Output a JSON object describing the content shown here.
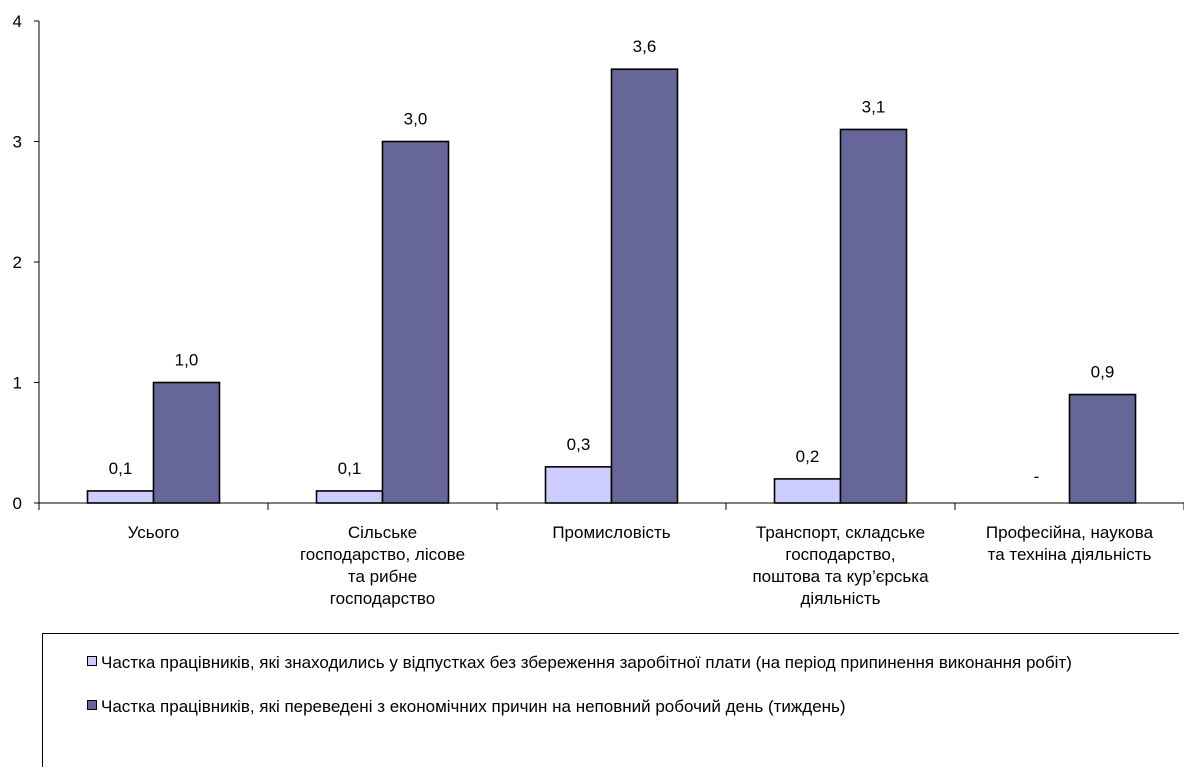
{
  "chart_data": {
    "type": "bar",
    "categories": [
      [
        "Усього"
      ],
      [
        "Сільське",
        "господарство, лісове",
        "та рибне",
        "господарство"
      ],
      [
        "Промисловість"
      ],
      [
        "Транспорт, складське",
        "господарство,",
        "поштова та кур’єрська",
        "діяльність"
      ],
      [
        "Професійна, наукова",
        "та техніна діяльність"
      ]
    ],
    "series": [
      {
        "name": "Частка працівників, які знаходились у відпустках без збереження заробітної плати (на період припинення виконання робіт)",
        "values": [
          0.1,
          0.1,
          0.3,
          0.2,
          null
        ],
        "labels": [
          "0,1",
          "0,1",
          "0,3",
          "0,2",
          "-"
        ],
        "color": "#ccccff"
      },
      {
        "name": "Частка працівників, які переведені з економічних причин на неповний робочий день (тиждень)",
        "values": [
          1.0,
          3.0,
          3.6,
          3.1,
          0.9
        ],
        "labels": [
          "1,0",
          "3,0",
          "3,6",
          "3,1",
          "0,9"
        ],
        "color": "#666699"
      }
    ],
    "y_ticks": [
      "0",
      "1",
      "2",
      "3",
      "4"
    ],
    "ylim": [
      0,
      4
    ],
    "grid": false,
    "legend_position": "bottom"
  }
}
